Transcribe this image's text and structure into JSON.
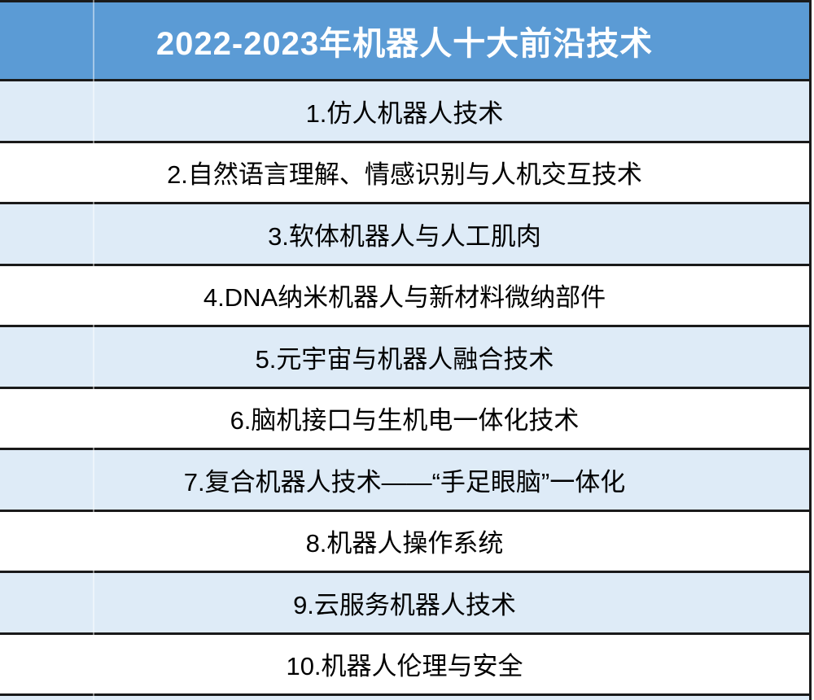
{
  "table": {
    "title": "2022-2023年机器人十大前沿技术",
    "rows": [
      {
        "label": "1.仿人机器人技术"
      },
      {
        "label": "2.自然语言理解、情感识别与人机交互技术"
      },
      {
        "label": "3.软体机器人与人工肌肉"
      },
      {
        "label": "4.DNA纳米机器人与新材料微纳部件"
      },
      {
        "label": "5.元宇宙与机器人融合技术"
      },
      {
        "label": "6.脑机接口与生机电一体化技术"
      },
      {
        "label": "7.复合机器人技术——“手足眼脑”一体化"
      },
      {
        "label": "8.机器人操作系统"
      },
      {
        "label": "9.云服务机器人技术"
      },
      {
        "label": "10.机器人伦理与安全"
      }
    ]
  },
  "colors": {
    "header_bg": "#5b9bd5",
    "header_text": "#ffffff",
    "row_alt_bg": "#deebf7",
    "row_bg": "#ffffff",
    "row_text": "#000000",
    "border": "#1a1a1a"
  }
}
